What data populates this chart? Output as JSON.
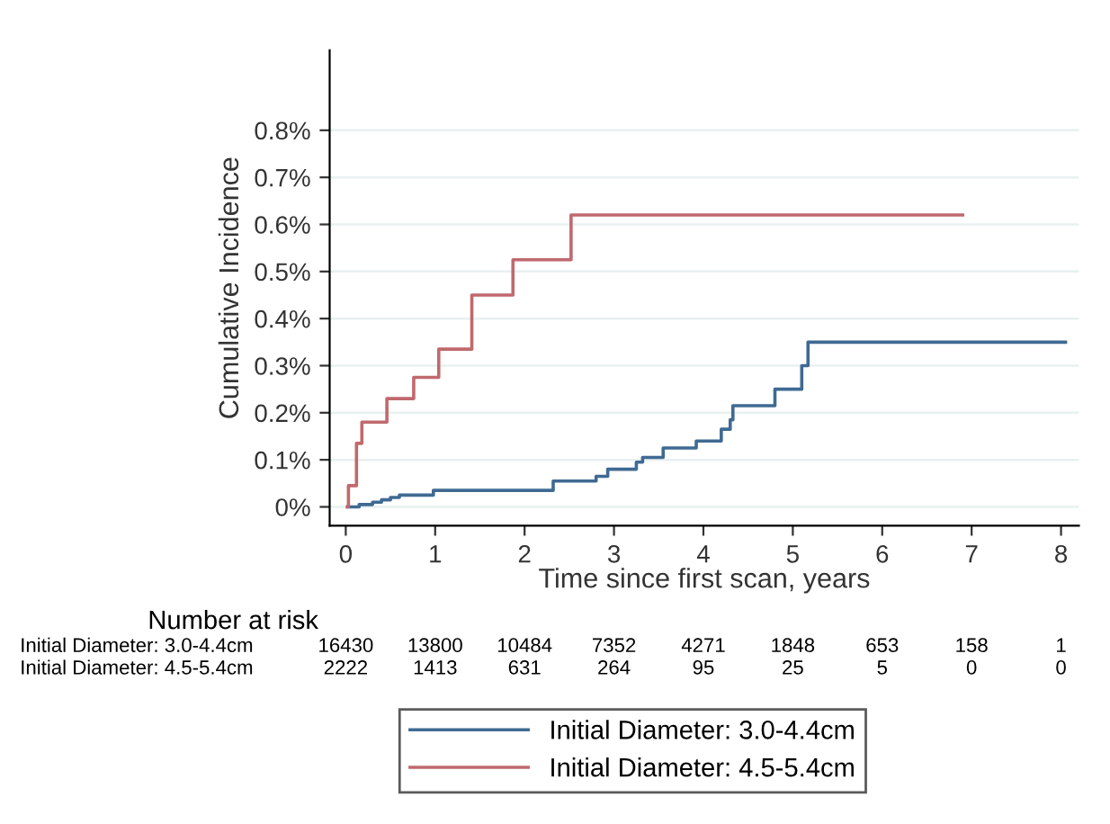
{
  "chart_data": {
    "type": "step",
    "xlabel": "Time since first scan, years",
    "ylabel": "Cumulative Incidence",
    "xlim": [
      -0.18,
      8.2
    ],
    "xticks": [
      0,
      1,
      2,
      3,
      4,
      5,
      6,
      7,
      8
    ],
    "ylim": [
      -0.04,
      0.97
    ],
    "yticks": [
      {
        "value": 0,
        "label": "0%"
      },
      {
        "value": 0.1,
        "label": "0.1%"
      },
      {
        "value": 0.2,
        "label": "0.2%"
      },
      {
        "value": 0.3,
        "label": "0.3%"
      },
      {
        "value": 0.4,
        "label": "0.4%"
      },
      {
        "value": 0.5,
        "label": "0.5%"
      },
      {
        "value": 0.6,
        "label": "0.6%"
      },
      {
        "value": 0.7,
        "label": "0.7%"
      },
      {
        "value": 0.8,
        "label": "0.8%"
      }
    ],
    "grid": "y",
    "legend": "bottom",
    "line_style": "solid",
    "series": [
      {
        "name": "Initial Diameter: 3.0-4.4cm",
        "color": "#3f6a92",
        "x": [
          0.02,
          0.15,
          0.3,
          0.4,
          0.5,
          0.6,
          0.98,
          2.32,
          2.8,
          2.93,
          3.25,
          3.32,
          3.55,
          3.92,
          4.2,
          4.3,
          4.33,
          4.8,
          5.1,
          5.17,
          8.05
        ],
        "values": [
          0,
          0.005,
          0.01,
          0.015,
          0.02,
          0.025,
          0.035,
          0.055,
          0.065,
          0.08,
          0.095,
          0.105,
          0.125,
          0.14,
          0.165,
          0.185,
          0.215,
          0.25,
          0.3,
          0.35,
          0.35
        ]
      },
      {
        "name": "Initial Diameter: 4.5-5.4cm",
        "color": "#c0696e",
        "x": [
          0.02,
          0.03,
          0.12,
          0.18,
          0.46,
          0.76,
          1.04,
          1.41,
          1.87,
          2.52,
          6.9
        ],
        "values": [
          0,
          0.045,
          0.135,
          0.18,
          0.23,
          0.275,
          0.335,
          0.45,
          0.525,
          0.62,
          0.62
        ]
      }
    ],
    "annotations": [
      "Number at risk",
      "Initial Diameter: 3.0-4.4cm",
      "16430",
      "13800",
      "10484",
      "7352",
      "4271",
      "1848",
      "653",
      "158",
      "1",
      "Initial Diameter: 4.5-5.4cm",
      "2222",
      "1413",
      "631",
      "264",
      "95",
      "25",
      "5",
      "0",
      "0"
    ]
  }
}
